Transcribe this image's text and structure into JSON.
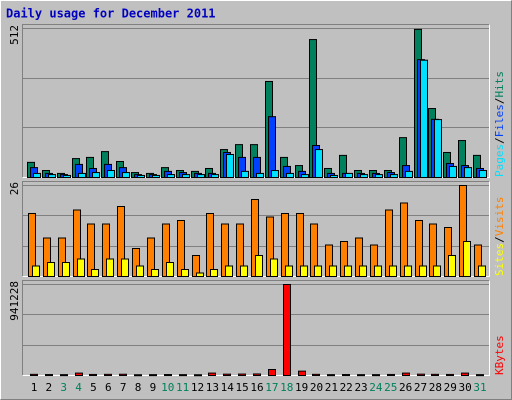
{
  "title": "Daily usage for December 2011",
  "legend_separator": "/",
  "chart_data": [
    {
      "type": "bar",
      "series": [
        {
          "name": "Hits",
          "color": "#00805c",
          "values": [
            52,
            24,
            14,
            65,
            69,
            89,
            55,
            17,
            14,
            34,
            24,
            21,
            31,
            96,
            113,
            113,
            330,
            69,
            41,
            474,
            31,
            76,
            24,
            24,
            24,
            137,
            509,
            237,
            86,
            127,
            76
          ]
        },
        {
          "name": "Files",
          "color": "#0040ff",
          "values": [
            34,
            14,
            10,
            45,
            31,
            45,
            34,
            10,
            10,
            21,
            17,
            14,
            14,
            86,
            69,
            69,
            209,
            38,
            21,
            110,
            14,
            14,
            14,
            14,
            17,
            41,
            405,
            200,
            48,
            41,
            31
          ]
        },
        {
          "name": "Pages",
          "color": "#00e0ff",
          "values": [
            14,
            10,
            7,
            14,
            17,
            24,
            17,
            7,
            7,
            10,
            10,
            10,
            10,
            79,
            21,
            14,
            24,
            14,
            10,
            96,
            7,
            14,
            10,
            10,
            10,
            21,
            403,
            199,
            38,
            34,
            24
          ]
        }
      ],
      "ylim": [
        0,
        512
      ],
      "yticks": [
        512
      ]
    },
    {
      "type": "bar",
      "series": [
        {
          "name": "Visits",
          "color": "#ff8000",
          "values": [
            18,
            11,
            11,
            19,
            15,
            15,
            20,
            8,
            11,
            15,
            16,
            6,
            18,
            15,
            15,
            22,
            17,
            18,
            18,
            15,
            9,
            10,
            11,
            9,
            19,
            21,
            16,
            15,
            14,
            26,
            9
          ]
        },
        {
          "name": "Sites",
          "color": "#ffff00",
          "values": [
            3,
            4,
            4,
            5,
            2,
            5,
            5,
            3,
            2,
            4,
            2,
            1,
            2,
            3,
            3,
            6,
            5,
            3,
            3,
            3,
            3,
            3,
            3,
            3,
            3,
            3,
            3,
            3,
            6,
            10,
            3
          ]
        }
      ],
      "ylim": [
        0,
        26
      ],
      "yticks": [
        26
      ]
    },
    {
      "type": "bar",
      "series": [
        {
          "name": "KBytes",
          "color": "#ff0000",
          "values": [
            12000,
            10000,
            9000,
            25000,
            11000,
            12000,
            13000,
            8000,
            9000,
            10000,
            9000,
            8000,
            25000,
            14000,
            15000,
            16000,
            62000,
            941228,
            45000,
            12000,
            9000,
            10000,
            9000,
            9000,
            11000,
            25000,
            14000,
            12000,
            11000,
            25000,
            9000
          ]
        }
      ],
      "ylim": [
        0,
        941228
      ],
      "yticks": [
        941228
      ],
      "categories": [
        "1",
        "2",
        "3",
        "4",
        "5",
        "6",
        "7",
        "8",
        "9",
        "10",
        "11",
        "12",
        "13",
        "14",
        "15",
        "16",
        "17",
        "18",
        "19",
        "20",
        "21",
        "22",
        "23",
        "24",
        "25",
        "26",
        "27",
        "28",
        "29",
        "30",
        "31"
      ],
      "category_colors": [
        "#000000",
        "#000000",
        "#00805c",
        "#00805c",
        "#000000",
        "#000000",
        "#000000",
        "#000000",
        "#000000",
        "#00805c",
        "#00805c",
        "#000000",
        "#000000",
        "#000000",
        "#000000",
        "#000000",
        "#00805c",
        "#00805c",
        "#000000",
        "#000000",
        "#000000",
        "#000000",
        "#000000",
        "#00805c",
        "#00805c",
        "#000000",
        "#000000",
        "#000000",
        "#000000",
        "#000000",
        "#00805c"
      ]
    }
  ]
}
